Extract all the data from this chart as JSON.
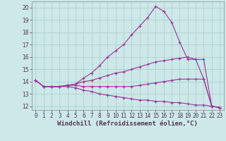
{
  "xlabel": "Windchill (Refroidissement éolien,°C)",
  "background_color": "#cce8e8",
  "grid_color": "#aacccc",
  "line_color": "#993399",
  "xlim": [
    -0.5,
    23.5
  ],
  "ylim": [
    11.7,
    20.5
  ],
  "xticks": [
    0,
    1,
    2,
    3,
    4,
    5,
    6,
    7,
    8,
    9,
    10,
    11,
    12,
    13,
    14,
    15,
    16,
    17,
    18,
    19,
    20,
    21,
    22,
    23
  ],
  "yticks": [
    12,
    13,
    14,
    15,
    16,
    17,
    18,
    19,
    20
  ],
  "lines": [
    {
      "x": [
        0,
        1,
        2,
        3,
        4,
        5,
        6,
        7,
        8,
        9,
        10,
        11,
        12,
        13,
        14,
        15,
        16,
        17,
        18,
        19,
        20,
        21,
        22,
        23
      ],
      "y": [
        14.1,
        13.6,
        13.6,
        13.6,
        13.7,
        13.8,
        14.3,
        14.7,
        15.3,
        16.0,
        16.5,
        17.0,
        17.8,
        18.5,
        19.2,
        20.1,
        19.7,
        18.8,
        17.2,
        15.8,
        15.8,
        14.2,
        12.0,
        11.9
      ]
    },
    {
      "x": [
        0,
        1,
        2,
        3,
        4,
        5,
        6,
        7,
        8,
        9,
        10,
        11,
        12,
        13,
        14,
        15,
        16,
        17,
        18,
        19,
        20,
        21,
        22,
        23
      ],
      "y": [
        14.1,
        13.6,
        13.6,
        13.6,
        13.7,
        13.8,
        14.0,
        14.1,
        14.3,
        14.5,
        14.7,
        14.8,
        15.0,
        15.2,
        15.4,
        15.6,
        15.7,
        15.8,
        15.9,
        16.0,
        15.8,
        15.8,
        12.0,
        11.9
      ]
    },
    {
      "x": [
        0,
        1,
        2,
        3,
        4,
        5,
        6,
        7,
        8,
        9,
        10,
        11,
        12,
        13,
        14,
        15,
        16,
        17,
        18,
        19,
        20,
        21,
        22,
        23
      ],
      "y": [
        14.1,
        13.6,
        13.6,
        13.6,
        13.7,
        13.7,
        13.6,
        13.6,
        13.6,
        13.6,
        13.6,
        13.6,
        13.6,
        13.7,
        13.8,
        13.9,
        14.0,
        14.1,
        14.2,
        14.2,
        14.2,
        14.2,
        12.0,
        11.9
      ]
    },
    {
      "x": [
        0,
        1,
        2,
        3,
        4,
        5,
        6,
        7,
        8,
        9,
        10,
        11,
        12,
        13,
        14,
        15,
        16,
        17,
        18,
        19,
        20,
        21,
        22,
        23
      ],
      "y": [
        14.1,
        13.6,
        13.6,
        13.6,
        13.6,
        13.5,
        13.3,
        13.2,
        13.0,
        12.9,
        12.8,
        12.7,
        12.6,
        12.5,
        12.5,
        12.4,
        12.4,
        12.3,
        12.3,
        12.2,
        12.1,
        12.1,
        12.0,
        11.9
      ]
    }
  ],
  "marker": "+",
  "markersize": 3,
  "linewidth": 0.8,
  "xlabel_fontsize": 6.5,
  "tick_fontsize": 5.5
}
